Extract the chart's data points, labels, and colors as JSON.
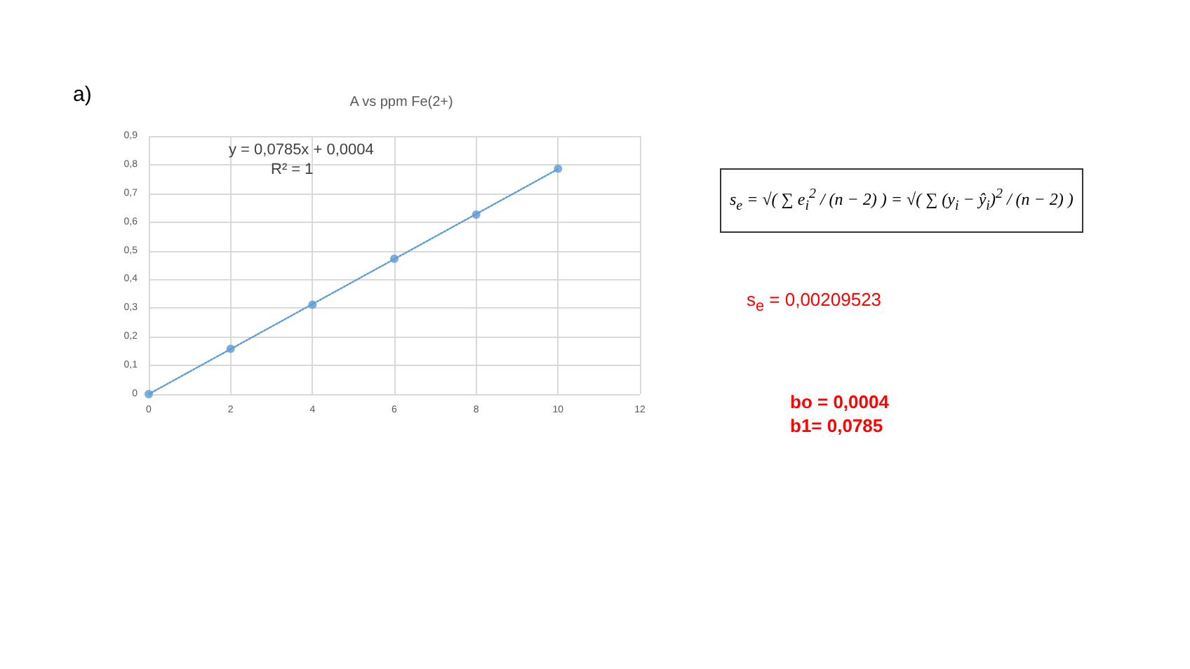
{
  "chart_data": {
    "type": "scatter",
    "title": "A vs ppm Fe(2+)",
    "x": [
      0,
      2,
      4,
      6,
      8,
      10
    ],
    "series": [
      {
        "color": "#5b9bd5",
        "marker": "circle",
        "values": [
          0,
          0.158,
          0.312,
          0.472,
          0.626,
          0.786
        ]
      },
      {
        "type": "line",
        "color": "#5b9bd5",
        "marker": "none",
        "line_style": "dotted",
        "x": [
          0,
          10
        ],
        "values": [
          0,
          0.785
        ]
      }
    ],
    "xlim": [
      0,
      12
    ],
    "xticks": [
      0,
      2,
      4,
      6,
      8,
      10,
      12
    ],
    "ylim": [
      0,
      0.9
    ],
    "yticks": [
      0,
      {
        "value": 0.1,
        "label": "0,1"
      },
      {
        "value": 0.2,
        "label": "0,2"
      },
      {
        "value": 0.3,
        "label": "0,3"
      },
      {
        "value": 0.4,
        "label": "0,4"
      },
      {
        "value": 0.5,
        "label": "0,5"
      },
      {
        "value": 0.6,
        "label": "0,6"
      },
      {
        "value": 0.7,
        "label": "0,7"
      },
      {
        "value": 0.8,
        "label": "0,8"
      },
      {
        "value": 0.9,
        "label": "0,9"
      }
    ],
    "grid": true,
    "annotations": [
      "a)",
      "y = 0,0785x + 0,0004",
      "R² = 1",
      "s$_{e}$ = √( ∑ e$_{i}$$^{2}$ / (n − 2) ) = √( ∑ (y$_{i}$ − ŷ$_{i}$)$^{2}$ / (n − 2) )",
      "s$_{e}$ = 0,00209523",
      "bo = 0,0004",
      "b1= 0,0785"
    ]
  }
}
